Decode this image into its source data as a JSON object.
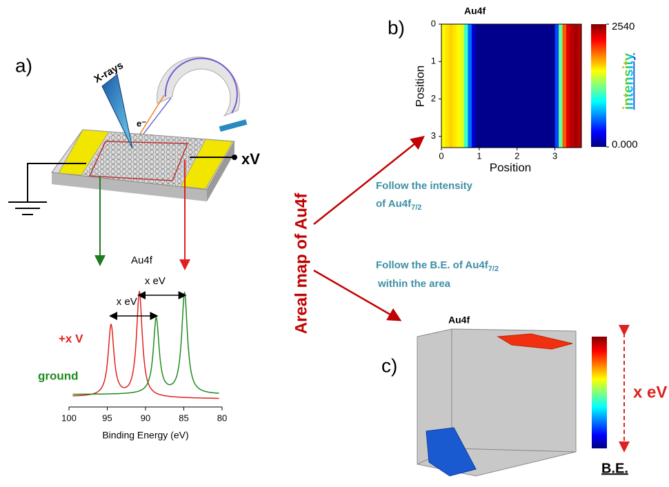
{
  "panel_a": {
    "label": "a)",
    "xrays": "X-rays",
    "electron": "e⁻",
    "voltage": "xV",
    "spectrum": {
      "title": "Au4f",
      "xlabel": "Binding Energy (eV)",
      "xlim": [
        100,
        80
      ],
      "xticks": [
        100,
        95,
        90,
        85,
        80
      ],
      "shift_labels": [
        "x eV",
        "x eV"
      ],
      "series": [
        {
          "name": "+x V",
          "color": "#e02020",
          "peaks": [
            94.5,
            90.8
          ]
        },
        {
          "name": "ground",
          "color": "#1e8a1e",
          "peaks": [
            88.6,
            84.9
          ]
        }
      ]
    }
  },
  "center": {
    "vertical_label": "Areal map of Au4f",
    "intensity_note": {
      "line1": "Follow the intensity",
      "line2": "of Au4f",
      "sub": "7/2"
    },
    "be_note": {
      "line1": "Follow the B.E. of Au4f",
      "sub": "7/2",
      "line2": "within the area"
    }
  },
  "panel_b": {
    "label": "b)",
    "title": "Au4f",
    "xlabel": "Position",
    "ylabel": "Position",
    "xlim": [
      0,
      3.7
    ],
    "ylim": [
      0,
      3.3
    ],
    "xticks": [
      0,
      1,
      2,
      3
    ],
    "yticks": [
      0,
      1,
      2,
      3
    ],
    "column_width": 0.1,
    "column_intensity": [
      1600,
      1650,
      1700,
      1650,
      1600,
      1500,
      1100,
      600,
      200,
      30,
      30,
      30,
      30,
      30,
      30,
      30,
      30,
      30,
      30,
      30,
      30,
      30,
      30,
      30,
      30,
      30,
      30,
      30,
      30,
      30,
      500,
      1200,
      2000,
      2300,
      2400,
      2450,
      2400
    ],
    "colorbar": {
      "label": "intensity",
      "lim": [
        0,
        2540
      ],
      "ticks": [
        {
          "value": 0,
          "label": "0.000"
        },
        2540
      ]
    }
  },
  "panel_c": {
    "label": "c)",
    "title": "Au4f",
    "shift_label": "x eV",
    "colorbar_label": "B.E."
  }
}
